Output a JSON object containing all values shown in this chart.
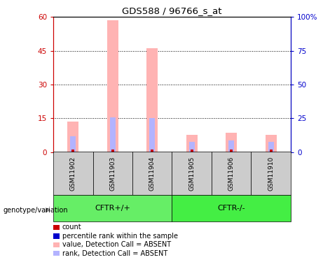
{
  "title": "GDS588 / 96766_s_at",
  "samples": [
    "GSM11902",
    "GSM11903",
    "GSM11904",
    "GSM11905",
    "GSM11906",
    "GSM11910"
  ],
  "pink_bar_values": [
    13.5,
    58.5,
    46.0,
    7.5,
    8.5,
    7.5
  ],
  "blue_bar_values": [
    7.0,
    15.5,
    15.0,
    4.5,
    5.0,
    4.5
  ],
  "red_dot_values": [
    1.2,
    1.2,
    1.2,
    1.2,
    1.2,
    1.2
  ],
  "ylim_left": [
    0,
    60
  ],
  "ylim_right": [
    0,
    100
  ],
  "yticks_left": [
    0,
    15,
    30,
    45,
    60
  ],
  "yticks_right": [
    0,
    25,
    50,
    75,
    100
  ],
  "ytick_labels_left": [
    "0",
    "15",
    "30",
    "45",
    "60"
  ],
  "ytick_labels_right": [
    "0",
    "25",
    "50",
    "75",
    "100%"
  ],
  "pink_color": "#ffb3b3",
  "blue_color": "#b3b3ff",
  "red_color": "#cc0000",
  "left_axis_color": "#cc0000",
  "right_axis_color": "#0000cc",
  "group_box_color": "#cccccc",
  "cftr_plus_color": "#66ee66",
  "cftr_minus_color": "#44ee44",
  "legend_items": [
    {
      "label": "count",
      "color": "#cc0000",
      "marker_color": "#cc0000"
    },
    {
      "label": "percentile rank within the sample",
      "color": "#000000",
      "marker_color": "#0000cc"
    },
    {
      "label": "value, Detection Call = ABSENT",
      "color": "#000000",
      "marker_color": "#ffb3b3"
    },
    {
      "label": "rank, Detection Call = ABSENT",
      "color": "#000000",
      "marker_color": "#b3b3ff"
    }
  ],
  "genotype_label": "genotype/variation"
}
